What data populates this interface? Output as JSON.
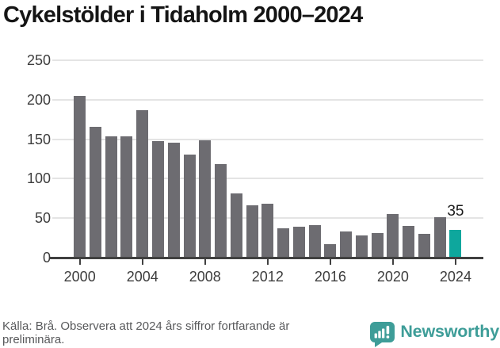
{
  "title": "Cykelstölder i Tidaholm 2000–2024",
  "chart_data": {
    "type": "bar",
    "title": "Cykelstölder i Tidaholm 2000–2024",
    "x": [
      2000,
      2001,
      2002,
      2003,
      2004,
      2005,
      2006,
      2007,
      2008,
      2009,
      2010,
      2011,
      2012,
      2013,
      2014,
      2015,
      2016,
      2017,
      2018,
      2019,
      2020,
      2021,
      2022,
      2023,
      2024
    ],
    "values": [
      205,
      166,
      154,
      154,
      187,
      148,
      146,
      131,
      149,
      118,
      81,
      66,
      68,
      37,
      39,
      41,
      17,
      33,
      28,
      31,
      55,
      40,
      30,
      51,
      35
    ],
    "highlight_year": 2024,
    "highlight_value_label": "35",
    "ylim": [
      0,
      250
    ],
    "yticks": [
      0,
      50,
      100,
      150,
      200,
      250
    ],
    "xticks": [
      2000,
      2004,
      2008,
      2012,
      2016,
      2020,
      2024
    ],
    "grid": true,
    "legend_position": "none",
    "xlabel": "",
    "ylabel": ""
  },
  "colors": {
    "bar": "#6d6c71",
    "highlight": "#0ea79d",
    "grid": "#e4e4e4",
    "axis": "#404040",
    "axis_label": "#3d3d3d",
    "value_label": "#1a1a1a",
    "logo_teal": "#3e9d98",
    "source_text": "#58595b"
  },
  "footer": {
    "lines": [
      "Källa: Brå. Observera att 2024 års siffror fortfarande är",
      "preliminära."
    ],
    "logo_text": "Newsworthy"
  }
}
